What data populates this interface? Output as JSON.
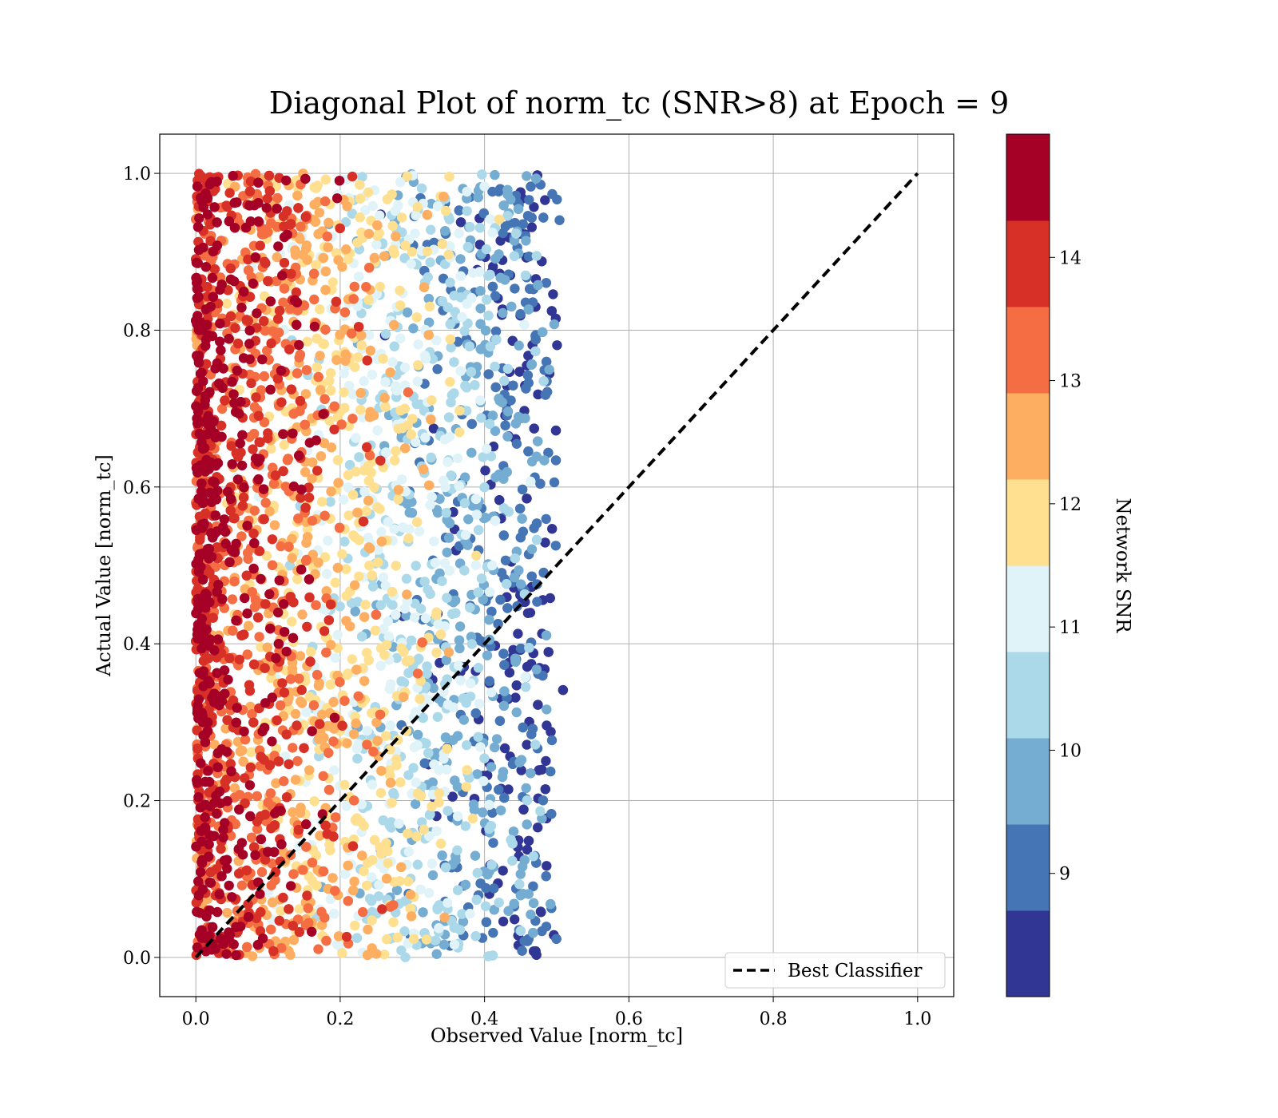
{
  "chart_data": {
    "type": "scatter",
    "title": "Diagonal Plot of norm_tc (SNR>8) at Epoch = 9",
    "xlabel": "Observed Value [norm_tc]",
    "ylabel": "Actual Value [norm_tc]",
    "xlim": [
      -0.05,
      1.05
    ],
    "ylim": [
      -0.05,
      1.05
    ],
    "xticks": [
      "0.0",
      "0.2",
      "0.4",
      "0.6",
      "0.8",
      "1.0"
    ],
    "yticks": [
      "0.0",
      "0.2",
      "0.4",
      "0.6",
      "0.8",
      "1.0"
    ],
    "grid": true,
    "legend": {
      "position": "lower-right",
      "entries": [
        "Best Classifier"
      ]
    },
    "reference_line": {
      "label": "Best Classifier",
      "x": [
        0,
        1
      ],
      "y": [
        0,
        1
      ],
      "style": "dashed",
      "color": "#000000"
    },
    "scatter_summary": {
      "x_range": [
        0.0,
        0.55
      ],
      "y_range": [
        0.0,
        1.0
      ],
      "trend": "observed value tends to decrease as Network SNR increases",
      "snr_vs_x_center": [
        {
          "snr": 14.5,
          "x": 0.01
        },
        {
          "snr": 13.7,
          "x": 0.06
        },
        {
          "snr": 13.0,
          "x": 0.1
        },
        {
          "snr": 12.3,
          "x": 0.15
        },
        {
          "snr": 11.6,
          "x": 0.22
        },
        {
          "snr": 10.9,
          "x": 0.28
        },
        {
          "snr": 10.2,
          "x": 0.34
        },
        {
          "snr": 9.5,
          "x": 0.4
        },
        {
          "snr": 8.7,
          "x": 0.45
        }
      ]
    },
    "colorbar": {
      "label": "Network SNR",
      "range": [
        8,
        15
      ],
      "ticks": [
        "9",
        "10",
        "11",
        "12",
        "13",
        "14"
      ],
      "colors": [
        "#313695",
        "#4575b4",
        "#74add1",
        "#abd9e9",
        "#e0f3f8",
        "#fee090",
        "#fdae61",
        "#f46d43",
        "#d73027",
        "#a50026"
      ]
    }
  }
}
